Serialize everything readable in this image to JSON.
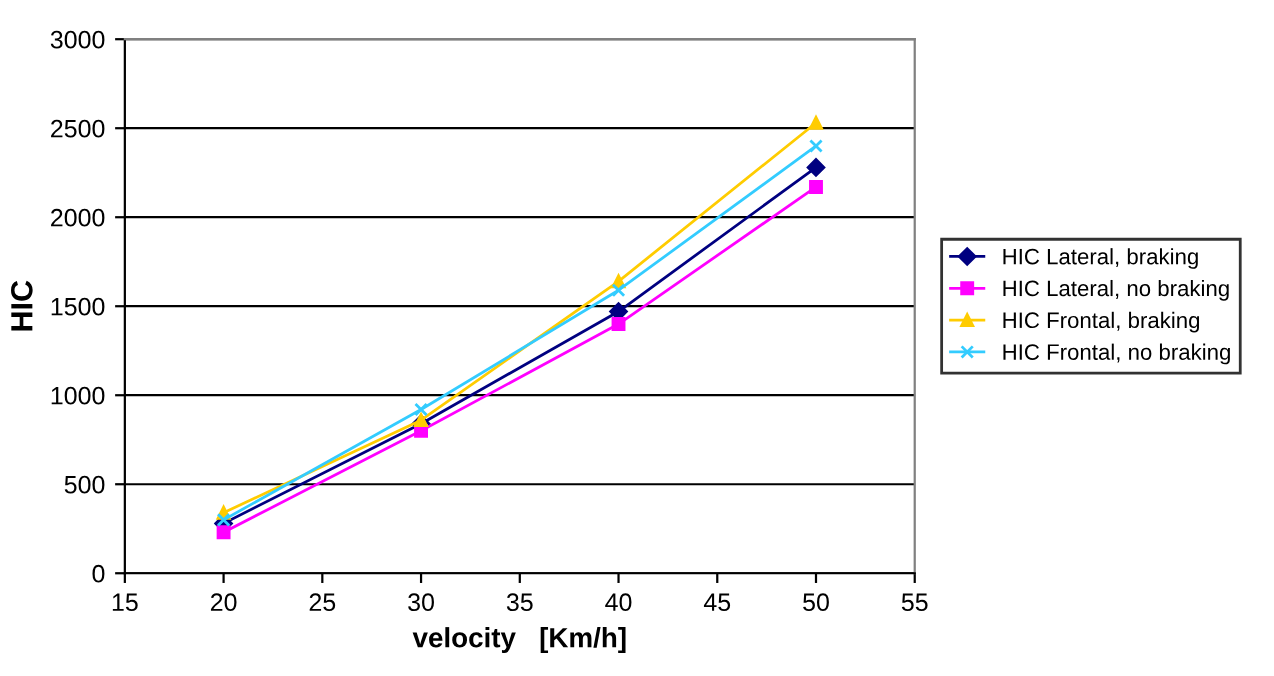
{
  "chart_data": {
    "type": "line",
    "xlabel": "velocity   [Km/h]",
    "ylabel": "HIC",
    "x": [
      20,
      30,
      40,
      50
    ],
    "series": [
      {
        "name": "HIC Lateral, braking",
        "color": "#000080",
        "marker": "diamond",
        "values": [
          280,
          840,
          1470,
          2280
        ]
      },
      {
        "name": "HIC Lateral, no braking",
        "color": "#ff00ff",
        "marker": "square",
        "values": [
          230,
          800,
          1400,
          2170
        ]
      },
      {
        "name": "HIC Frontal, braking",
        "color": "#ffcc00",
        "marker": "triangle",
        "values": [
          340,
          860,
          1640,
          2530
        ]
      },
      {
        "name": "HIC Frontal, no braking",
        "color": "#33ccff",
        "marker": "cross",
        "values": [
          300,
          920,
          1590,
          2400
        ]
      }
    ],
    "xlim": [
      15,
      55
    ],
    "xticks": [
      15,
      20,
      25,
      30,
      35,
      40,
      45,
      50,
      55
    ],
    "ylim": [
      0,
      3000
    ],
    "yticks": [
      0,
      500,
      1000,
      1500,
      2000,
      2500,
      3000
    ],
    "grid": "y",
    "legend": "right"
  }
}
